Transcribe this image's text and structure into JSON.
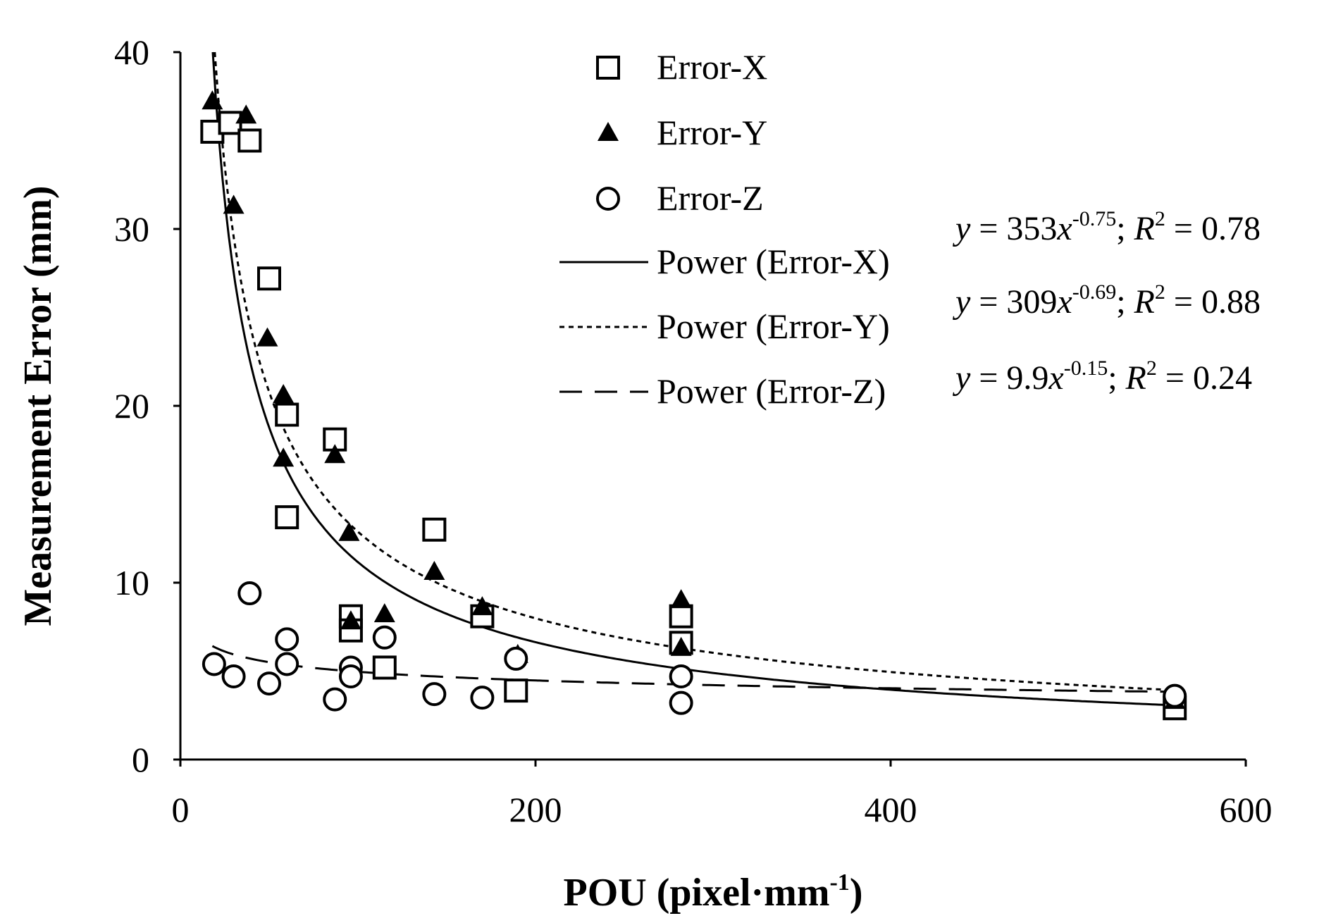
{
  "chart_data": {
    "type": "scatter",
    "title": "",
    "xlabel": "POU (pixel·mm",
    "xlabel_sup": "-1",
    "xlabel_close": ")",
    "ylabel": "Measurement Error (mm)",
    "xlim": [
      0,
      600
    ],
    "ylim": [
      0,
      40
    ],
    "xticks": [
      "0",
      "200",
      "400",
      "600"
    ],
    "yticks": [
      "0",
      "10",
      "20",
      "30",
      "40"
    ],
    "series": [
      {
        "name": "Error-X",
        "marker": "square",
        "points": [
          [
            18,
            35.5
          ],
          [
            28,
            36
          ],
          [
            39,
            35
          ],
          [
            50,
            27.2
          ],
          [
            60,
            19.5
          ],
          [
            60,
            13.7
          ],
          [
            87,
            18.1
          ],
          [
            96,
            8.1
          ],
          [
            96,
            7.3
          ],
          [
            115,
            5.2
          ],
          [
            143,
            13
          ],
          [
            170,
            8.1
          ],
          [
            189,
            3.9
          ],
          [
            282,
            8.1
          ],
          [
            282,
            6.6
          ],
          [
            560,
            2.9
          ]
        ]
      },
      {
        "name": "Error-Y",
        "marker": "triangle",
        "points": [
          [
            18,
            37.2
          ],
          [
            30,
            31.3
          ],
          [
            37,
            36.4
          ],
          [
            49,
            23.8
          ],
          [
            58,
            20.6
          ],
          [
            58,
            17
          ],
          [
            87,
            17.2
          ],
          [
            95,
            12.8
          ],
          [
            96,
            7.8
          ],
          [
            115,
            8.2
          ],
          [
            143,
            10.6
          ],
          [
            170,
            8.6
          ],
          [
            190,
            5.9
          ],
          [
            282,
            9
          ],
          [
            282,
            6.3
          ],
          [
            560,
            3.3
          ]
        ]
      },
      {
        "name": "Error-Z",
        "marker": "circle",
        "points": [
          [
            19,
            5.4
          ],
          [
            30,
            4.7
          ],
          [
            39,
            9.4
          ],
          [
            50,
            4.3
          ],
          [
            60,
            6.8
          ],
          [
            60,
            5.4
          ],
          [
            87,
            3.4
          ],
          [
            96,
            5.2
          ],
          [
            96,
            4.7
          ],
          [
            115,
            6.9
          ],
          [
            143,
            3.7
          ],
          [
            170,
            3.5
          ],
          [
            189,
            5.7
          ],
          [
            282,
            4.7
          ],
          [
            282,
            3.2
          ],
          [
            560,
            3.6
          ]
        ]
      }
    ],
    "trendlines": [
      {
        "name": "Power (Error-X)",
        "type": "power",
        "a": 353,
        "b": -0.75,
        "style": "solid",
        "equation": "= 353",
        "exponent": "-0.75",
        "r2": " = 0.78"
      },
      {
        "name": "Power (Error-Y)",
        "type": "power",
        "a": 309,
        "b": -0.69,
        "style": "dotted",
        "equation": "= 309",
        "exponent": "-0.69",
        "r2": " = 0.88"
      },
      {
        "name": "Power (Error-Z)",
        "type": "power",
        "a": 9.9,
        "b": -0.15,
        "style": "dashed",
        "equation": "= 9.9",
        "exponent": "-0.15",
        "r2": " = 0.24"
      }
    ],
    "equation_y": "y",
    "equation_x": "x",
    "equation_sep": "; ",
    "equation_r": "R",
    "equation_r_sup": "2",
    "legend_position": "top-right"
  },
  "colors": {
    "ink": "#000000",
    "background": "#ffffff"
  }
}
